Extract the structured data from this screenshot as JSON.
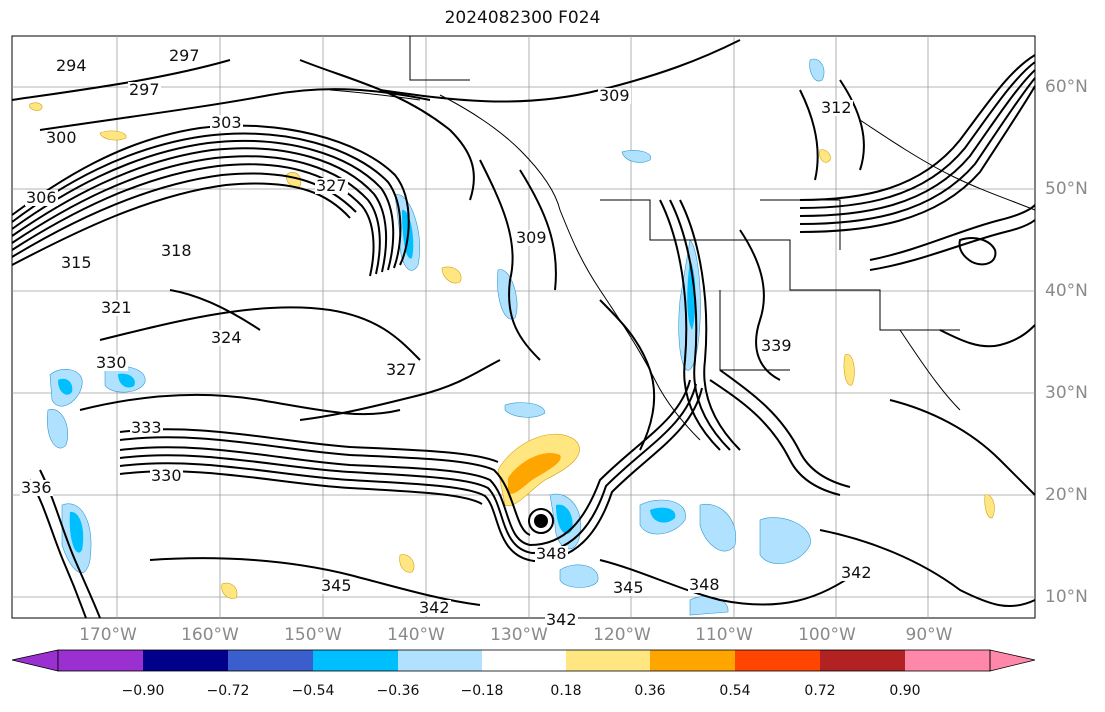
{
  "title": "2024082300 F024",
  "lat_labels": [
    "60°N",
    "50°N",
    "40°N",
    "30°N",
    "20°N",
    "10°N"
  ],
  "lon_labels": [
    "170°W",
    "160°W",
    "150°W",
    "140°W",
    "130°W",
    "120°W",
    "110°W",
    "100°W",
    "90°W"
  ],
  "contour_labels": [
    "294",
    "297",
    "297",
    "300",
    "303",
    "306",
    "309",
    "309",
    "312",
    "315",
    "318",
    "321",
    "324",
    "327",
    "327",
    "330",
    "330",
    "333",
    "336",
    "339",
    "342",
    "342",
    "342",
    "345",
    "345",
    "348",
    "348"
  ],
  "colorbar": {
    "ticks": [
      "−0.90",
      "−0.72",
      "−0.54",
      "−0.36",
      "−0.18",
      "0.18",
      "0.36",
      "0.54",
      "0.72",
      "0.90"
    ],
    "colors": [
      "#9b30d0",
      "#00008b",
      "#3a5fcd",
      "#00bfff",
      "#b0e2ff",
      "#ffffff",
      "#ffe680",
      "#ffa500",
      "#ff4500",
      "#b22222",
      "#ff88aa"
    ]
  }
}
